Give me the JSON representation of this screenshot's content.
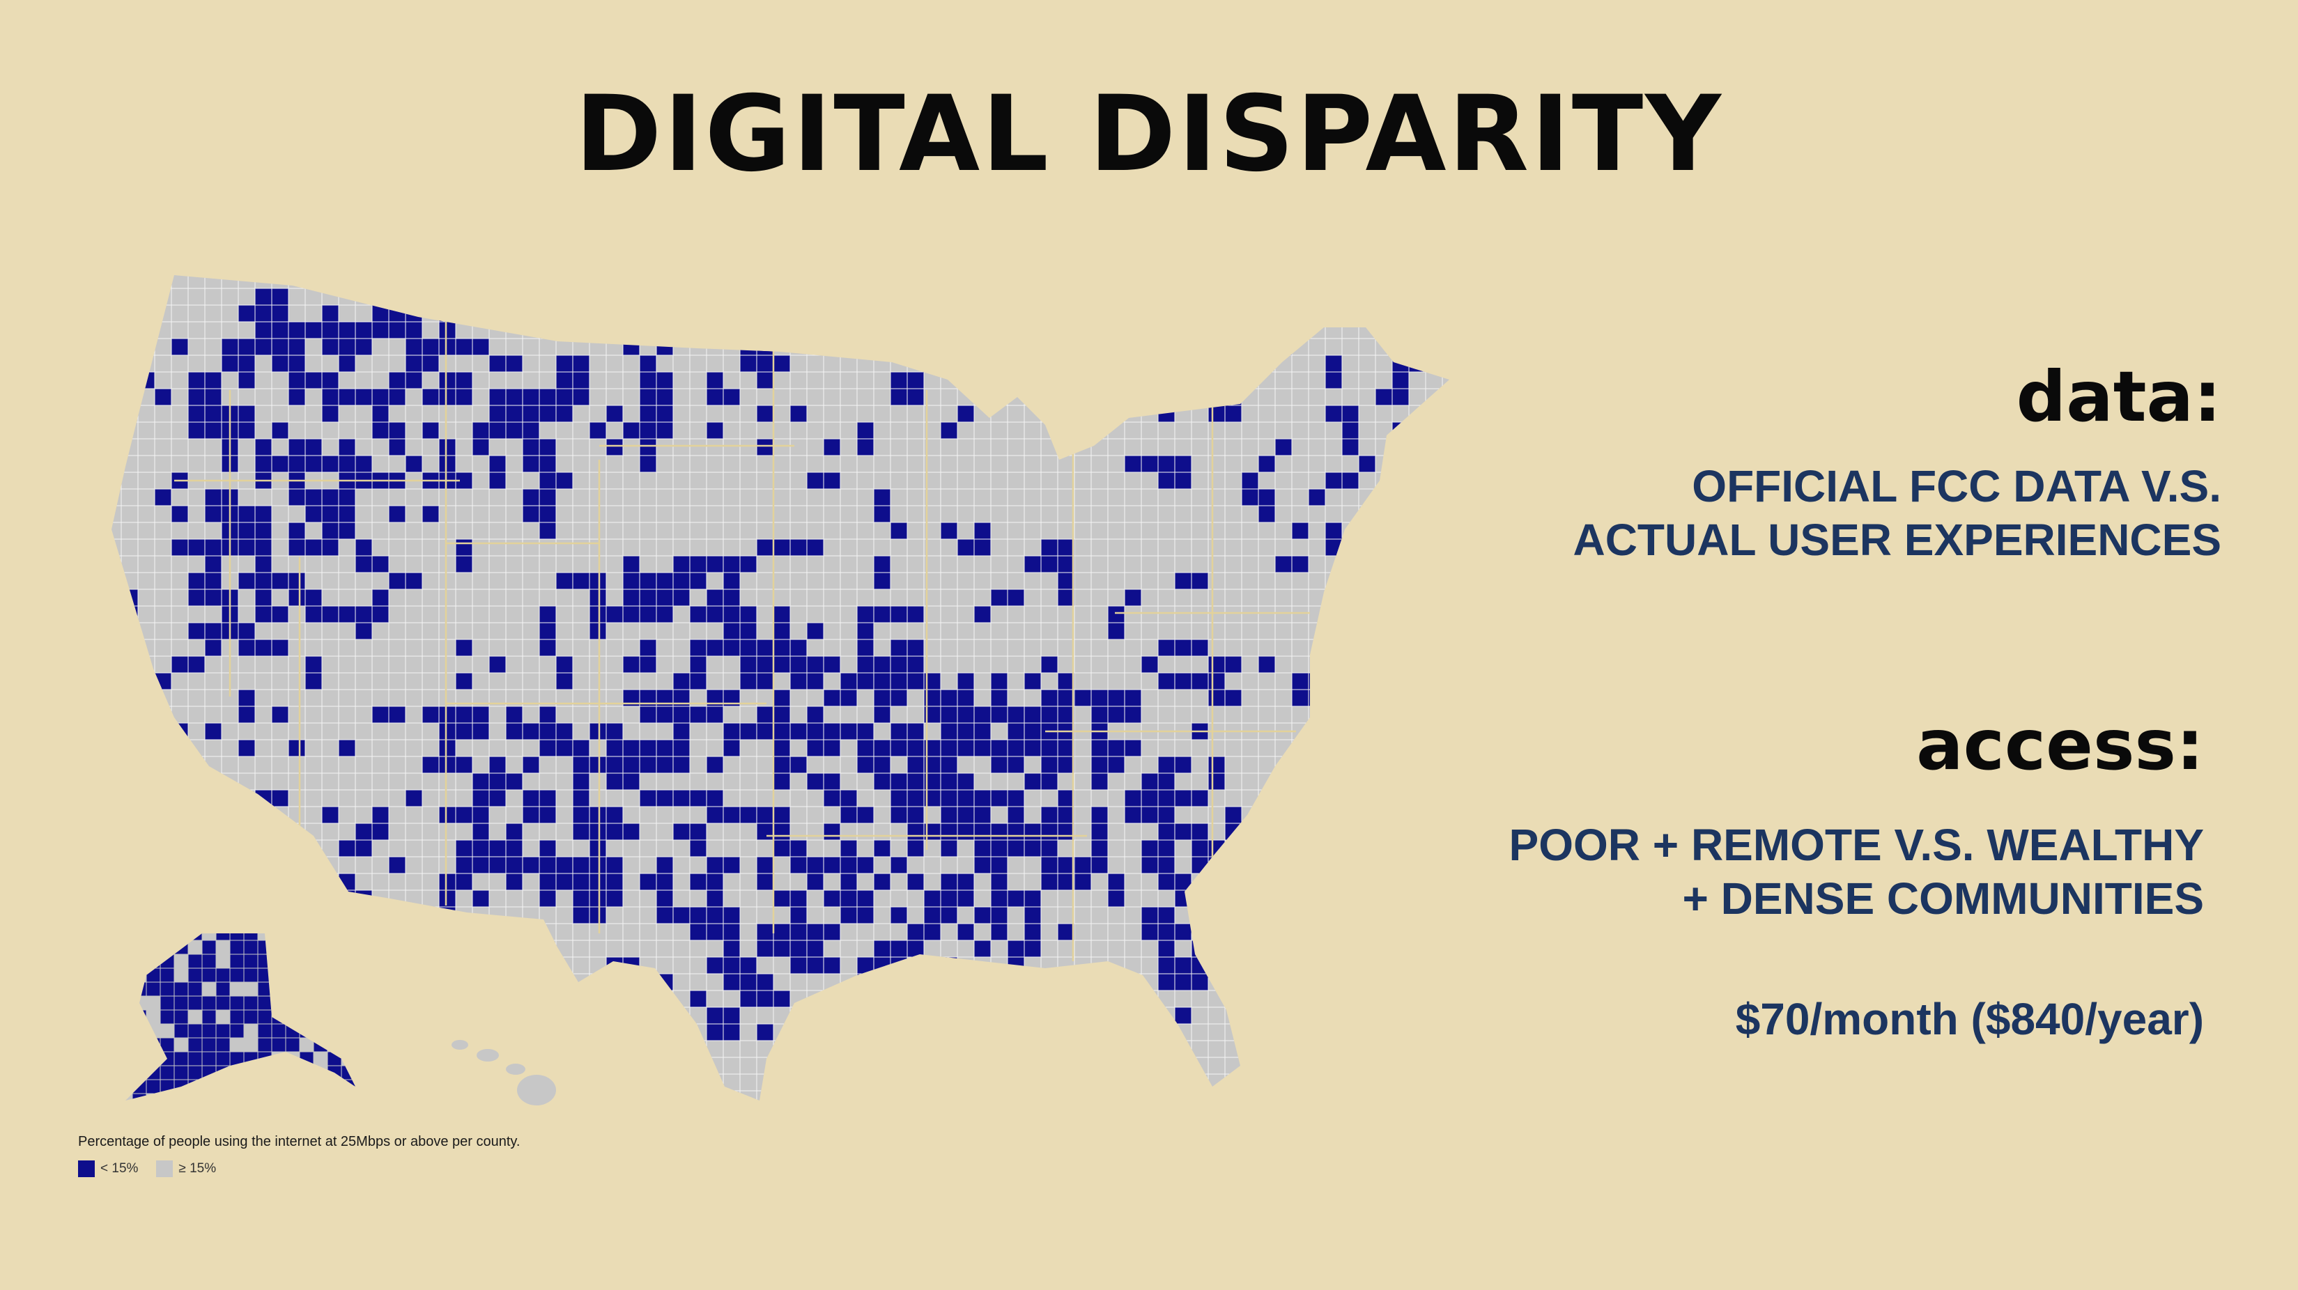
{
  "title": "DIGITAL DISPARITY",
  "sections": {
    "data": {
      "heading": "data:",
      "lines": [
        "OFFICIAL FCC DATA V.S.",
        "ACTUAL USER EXPERIENCES"
      ]
    },
    "access": {
      "heading": "access:",
      "lines": [
        "POOR + REMOTE V.S. WEALTHY",
        "+ DENSE COMMUNITIES"
      ],
      "cost": "$70/month ($840/year)"
    }
  },
  "map": {
    "legend_title": "Percentage of people using the internet at 25Mbps or above per county.",
    "legend": [
      {
        "label": "< 15%",
        "color": "#0e0e8c"
      },
      {
        "label": "≥ 15%",
        "color": "#c7c7c7"
      }
    ]
  },
  "colors": {
    "background": "#eadcb5",
    "low_access": "#0e0e8c",
    "high_access": "#c7c7c7",
    "accent_text": "#1c3560"
  }
}
